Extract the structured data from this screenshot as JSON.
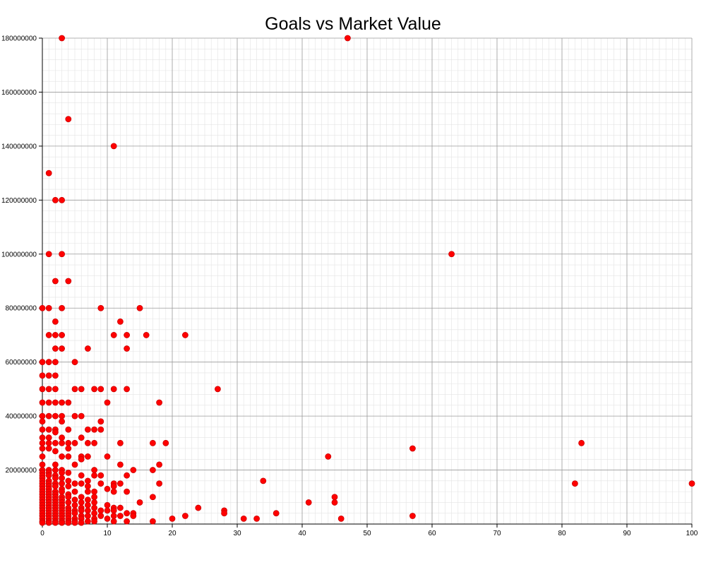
{
  "chart_data": {
    "type": "scatter",
    "title": "Goals vs Market Value",
    "xlabel": "",
    "ylabel": "",
    "xlim": [
      0,
      100
    ],
    "ylim": [
      0,
      180000000
    ],
    "x_ticks": [
      0,
      10,
      20,
      30,
      40,
      50,
      60,
      70,
      80,
      90,
      100
    ],
    "y_ticks": [
      20000000,
      40000000,
      60000000,
      80000000,
      100000000,
      120000000,
      140000000,
      160000000,
      180000000
    ],
    "grid": true,
    "legend": "none",
    "marker_color": "#ff0000",
    "points": [
      [
        3,
        180000000
      ],
      [
        47,
        180000000
      ],
      [
        4,
        150000000
      ],
      [
        11,
        140000000
      ],
      [
        1,
        130000000
      ],
      [
        2,
        120000000
      ],
      [
        3,
        120000000
      ],
      [
        1,
        100000000
      ],
      [
        3,
        100000000
      ],
      [
        63,
        100000000
      ],
      [
        2,
        90000000
      ],
      [
        4,
        90000000
      ],
      [
        0,
        80000000
      ],
      [
        1,
        80000000
      ],
      [
        3,
        80000000
      ],
      [
        9,
        80000000
      ],
      [
        15,
        80000000
      ],
      [
        2,
        75000000
      ],
      [
        12,
        75000000
      ],
      [
        1,
        70000000
      ],
      [
        2,
        70000000
      ],
      [
        3,
        70000000
      ],
      [
        11,
        70000000
      ],
      [
        13,
        70000000
      ],
      [
        16,
        70000000
      ],
      [
        22,
        70000000
      ],
      [
        2,
        65000000
      ],
      [
        3,
        65000000
      ],
      [
        7,
        65000000
      ],
      [
        13,
        65000000
      ],
      [
        0,
        60000000
      ],
      [
        1,
        60000000
      ],
      [
        2,
        60000000
      ],
      [
        5,
        60000000
      ],
      [
        0,
        55000000
      ],
      [
        1,
        55000000
      ],
      [
        2,
        55000000
      ],
      [
        0,
        50000000
      ],
      [
        1,
        50000000
      ],
      [
        2,
        50000000
      ],
      [
        5,
        50000000
      ],
      [
        6,
        50000000
      ],
      [
        8,
        50000000
      ],
      [
        9,
        50000000
      ],
      [
        11,
        50000000
      ],
      [
        13,
        50000000
      ],
      [
        27,
        50000000
      ],
      [
        0,
        45000000
      ],
      [
        1,
        45000000
      ],
      [
        2,
        45000000
      ],
      [
        3,
        45000000
      ],
      [
        4,
        45000000
      ],
      [
        10,
        45000000
      ],
      [
        18,
        45000000
      ],
      [
        0,
        40000000
      ],
      [
        1,
        40000000
      ],
      [
        2,
        40000000
      ],
      [
        3,
        40000000
      ],
      [
        5,
        40000000
      ],
      [
        6,
        40000000
      ],
      [
        0,
        38000000
      ],
      [
        3,
        38000000
      ],
      [
        9,
        38000000
      ],
      [
        0,
        35000000
      ],
      [
        1,
        35000000
      ],
      [
        2,
        35000000
      ],
      [
        4,
        35000000
      ],
      [
        7,
        35000000
      ],
      [
        8,
        35000000
      ],
      [
        9,
        35000000
      ],
      [
        2,
        34000000
      ],
      [
        0,
        32000000
      ],
      [
        1,
        32000000
      ],
      [
        3,
        32000000
      ],
      [
        6,
        32000000
      ],
      [
        0,
        30000000
      ],
      [
        1,
        30000000
      ],
      [
        2,
        30000000
      ],
      [
        3,
        30000000
      ],
      [
        4,
        30000000
      ],
      [
        5,
        30000000
      ],
      [
        7,
        30000000
      ],
      [
        8,
        30000000
      ],
      [
        12,
        30000000
      ],
      [
        17,
        30000000
      ],
      [
        19,
        30000000
      ],
      [
        83,
        30000000
      ],
      [
        0,
        28000000
      ],
      [
        1,
        28000000
      ],
      [
        4,
        28000000
      ],
      [
        57,
        28000000
      ],
      [
        2,
        27000000
      ],
      [
        0,
        25000000
      ],
      [
        3,
        25000000
      ],
      [
        4,
        25000000
      ],
      [
        6,
        25000000
      ],
      [
        7,
        25000000
      ],
      [
        10,
        25000000
      ],
      [
        44,
        25000000
      ],
      [
        6,
        24000000
      ],
      [
        0,
        22000000
      ],
      [
        2,
        22000000
      ],
      [
        5,
        22000000
      ],
      [
        12,
        22000000
      ],
      [
        18,
        22000000
      ],
      [
        0,
        20000000
      ],
      [
        1,
        20000000
      ],
      [
        2,
        20000000
      ],
      [
        3,
        20000000
      ],
      [
        8,
        20000000
      ],
      [
        14,
        20000000
      ],
      [
        17,
        20000000
      ],
      [
        0,
        19000000
      ],
      [
        1,
        19000000
      ],
      [
        3,
        19000000
      ],
      [
        4,
        19000000
      ],
      [
        0,
        18000000
      ],
      [
        1,
        18000000
      ],
      [
        2,
        18000000
      ],
      [
        6,
        18000000
      ],
      [
        8,
        18000000
      ],
      [
        9,
        18000000
      ],
      [
        13,
        18000000
      ],
      [
        0,
        17000000
      ],
      [
        2,
        17000000
      ],
      [
        3,
        17000000
      ],
      [
        0,
        16000000
      ],
      [
        1,
        16000000
      ],
      [
        4,
        16000000
      ],
      [
        7,
        16000000
      ],
      [
        34,
        16000000
      ],
      [
        0,
        15000000
      ],
      [
        1,
        15000000
      ],
      [
        2,
        15000000
      ],
      [
        3,
        15000000
      ],
      [
        5,
        15000000
      ],
      [
        6,
        15000000
      ],
      [
        9,
        15000000
      ],
      [
        11,
        15000000
      ],
      [
        12,
        15000000
      ],
      [
        18,
        15000000
      ],
      [
        82,
        15000000
      ],
      [
        100,
        15000000
      ],
      [
        0,
        14000000
      ],
      [
        1,
        14000000
      ],
      [
        2,
        14000000
      ],
      [
        4,
        14000000
      ],
      [
        7,
        14000000
      ],
      [
        11,
        14000000
      ],
      [
        0,
        13000000
      ],
      [
        1,
        13000000
      ],
      [
        3,
        13000000
      ],
      [
        10,
        13000000
      ],
      [
        0,
        12000000
      ],
      [
        1,
        12000000
      ],
      [
        2,
        12000000
      ],
      [
        3,
        12000000
      ],
      [
        5,
        12000000
      ],
      [
        7,
        12000000
      ],
      [
        8,
        12000000
      ],
      [
        11,
        12000000
      ],
      [
        13,
        12000000
      ],
      [
        0,
        11000000
      ],
      [
        1,
        11000000
      ],
      [
        2,
        11000000
      ],
      [
        4,
        11000000
      ],
      [
        0,
        10000000
      ],
      [
        1,
        10000000
      ],
      [
        2,
        10000000
      ],
      [
        3,
        10000000
      ],
      [
        4,
        10000000
      ],
      [
        6,
        10000000
      ],
      [
        8,
        10000000
      ],
      [
        17,
        10000000
      ],
      [
        45,
        10000000
      ],
      [
        0,
        9000000
      ],
      [
        1,
        9000000
      ],
      [
        2,
        9000000
      ],
      [
        3,
        9000000
      ],
      [
        5,
        9000000
      ],
      [
        7,
        9000000
      ],
      [
        0,
        8000000
      ],
      [
        1,
        8000000
      ],
      [
        2,
        8000000
      ],
      [
        3,
        8000000
      ],
      [
        4,
        8000000
      ],
      [
        6,
        8000000
      ],
      [
        8,
        8000000
      ],
      [
        15,
        8000000
      ],
      [
        41,
        8000000
      ],
      [
        45,
        8000000
      ],
      [
        0,
        7000000
      ],
      [
        1,
        7000000
      ],
      [
        2,
        7000000
      ],
      [
        3,
        7000000
      ],
      [
        5,
        7000000
      ],
      [
        7,
        7000000
      ],
      [
        10,
        7000000
      ],
      [
        0,
        6000000
      ],
      [
        1,
        6000000
      ],
      [
        2,
        6000000
      ],
      [
        3,
        6000000
      ],
      [
        4,
        6000000
      ],
      [
        6,
        6000000
      ],
      [
        8,
        6000000
      ],
      [
        11,
        6000000
      ],
      [
        12,
        6000000
      ],
      [
        24,
        6000000
      ],
      [
        0,
        5000000
      ],
      [
        1,
        5000000
      ],
      [
        2,
        5000000
      ],
      [
        3,
        5000000
      ],
      [
        4,
        5000000
      ],
      [
        5,
        5000000
      ],
      [
        6,
        5000000
      ],
      [
        7,
        5000000
      ],
      [
        9,
        5000000
      ],
      [
        10,
        5000000
      ],
      [
        11,
        5000000
      ],
      [
        28,
        5000000
      ],
      [
        0,
        4000000
      ],
      [
        1,
        4000000
      ],
      [
        2,
        4000000
      ],
      [
        3,
        4000000
      ],
      [
        4,
        4000000
      ],
      [
        5,
        4000000
      ],
      [
        8,
        4000000
      ],
      [
        13,
        4000000
      ],
      [
        14,
        4000000
      ],
      [
        28,
        4000000
      ],
      [
        36,
        4000000
      ],
      [
        0,
        3000000
      ],
      [
        1,
        3000000
      ],
      [
        2,
        3000000
      ],
      [
        3,
        3000000
      ],
      [
        4,
        3000000
      ],
      [
        6,
        3000000
      ],
      [
        7,
        3000000
      ],
      [
        9,
        3000000
      ],
      [
        11,
        3000000
      ],
      [
        12,
        3000000
      ],
      [
        14,
        3000000
      ],
      [
        22,
        3000000
      ],
      [
        57,
        3000000
      ],
      [
        0,
        2000000
      ],
      [
        1,
        2000000
      ],
      [
        2,
        2000000
      ],
      [
        3,
        2000000
      ],
      [
        4,
        2000000
      ],
      [
        5,
        2000000
      ],
      [
        6,
        2000000
      ],
      [
        8,
        2000000
      ],
      [
        10,
        2000000
      ],
      [
        20,
        2000000
      ],
      [
        31,
        2000000
      ],
      [
        33,
        2000000
      ],
      [
        46,
        2000000
      ],
      [
        0,
        1000000
      ],
      [
        1,
        1000000
      ],
      [
        2,
        1000000
      ],
      [
        3,
        1000000
      ],
      [
        4,
        1000000
      ],
      [
        5,
        1000000
      ],
      [
        7,
        1000000
      ],
      [
        8,
        1000000
      ],
      [
        11,
        1000000
      ],
      [
        13,
        1000000
      ],
      [
        17,
        1000000
      ],
      [
        0,
        500000
      ],
      [
        1,
        500000
      ],
      [
        2,
        500000
      ],
      [
        3,
        500000
      ],
      [
        4,
        500000
      ],
      [
        5,
        500000
      ],
      [
        6,
        500000
      ]
    ]
  }
}
